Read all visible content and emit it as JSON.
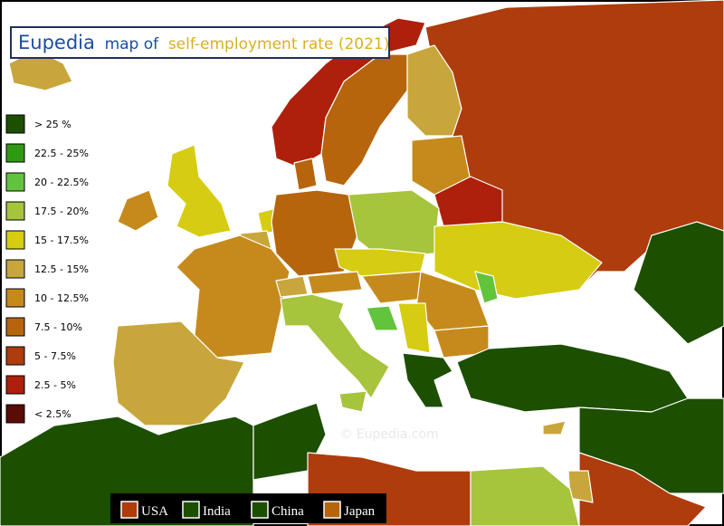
{
  "title": {
    "brand": "Eupedia",
    "prefix": "map of",
    "subject": "self-employment rate (2021)"
  },
  "legend": {
    "items": [
      {
        "label": "> 25 %",
        "color": "#1c4f00"
      },
      {
        "label": "22.5 - 25%",
        "color": "#2e9a12"
      },
      {
        "label": "20 - 22.5%",
        "color": "#62c43c"
      },
      {
        "label": "17.5 - 20%",
        "color": "#a6c43c"
      },
      {
        "label": "15 - 17.5%",
        "color": "#d6cc12"
      },
      {
        "label": "12.5 - 15%",
        "color": "#c8a63c"
      },
      {
        "label": "10 - 12.5%",
        "color": "#c68a1c"
      },
      {
        "label": "7.5 - 10%",
        "color": "#b6650c"
      },
      {
        "label": "5 - 7.5%",
        "color": "#ae3c0c"
      },
      {
        "label": "2.5 - 5%",
        "color": "#ae200c"
      },
      {
        "label": "< 2.5%",
        "color": "#5a0c06"
      }
    ]
  },
  "comparison": {
    "items": [
      {
        "label": "USA",
        "color": "#ae3c0c"
      },
      {
        "label": "India",
        "color": "#1c4f00"
      },
      {
        "label": "China",
        "color": "#1c4f00"
      },
      {
        "label": "Japan",
        "color": "#b6650c"
      }
    ]
  },
  "watermark": "© Eupedia.com"
}
